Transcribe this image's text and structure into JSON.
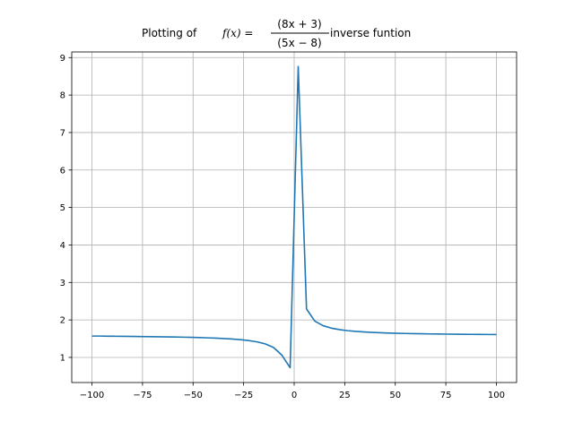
{
  "chart_data": {
    "type": "line",
    "title": {
      "prefix": "Plotting of ",
      "func": "f(x) = ",
      "numerator": "(8x + 3)",
      "denominator": "(5x − 8)",
      "suffix": " inverse funtion"
    },
    "xlim": [
      -110,
      110
    ],
    "ylim": [
      0.33,
      9.15
    ],
    "grid": true,
    "x_ticks": [
      -100,
      -75,
      -50,
      -25,
      0,
      25,
      50,
      75,
      100
    ],
    "x_tick_labels": [
      "−100",
      "−75",
      "−50",
      "−25",
      "0",
      "25",
      "50",
      "75",
      "100"
    ],
    "y_ticks": [
      1,
      2,
      3,
      4,
      5,
      6,
      7,
      8,
      9
    ],
    "y_tick_labels": [
      "1",
      "2",
      "3",
      "4",
      "5",
      "6",
      "7",
      "8",
      "9"
    ],
    "series": [
      {
        "color": "#1f77b4",
        "x": [
          -100,
          -95.9,
          -91.8,
          -87.8,
          -83.7,
          -79.6,
          -75.5,
          -71.4,
          -67.3,
          -63.3,
          -59.2,
          -55.1,
          -51.0,
          -46.9,
          -42.9,
          -38.8,
          -34.7,
          -30.6,
          -26.5,
          -22.4,
          -18.4,
          -14.3,
          -10.2,
          -6.1,
          -2.0,
          2.0,
          6.1,
          10.2,
          14.3,
          18.4,
          22.4,
          26.5,
          30.6,
          34.7,
          38.8,
          42.9,
          46.9,
          51.0,
          55.1,
          59.2,
          63.3,
          67.3,
          71.4,
          75.5,
          79.6,
          83.7,
          87.8,
          91.8,
          95.9,
          100
        ],
        "y": [
          1.57,
          1.57,
          1.566,
          1.564,
          1.562,
          1.56,
          1.557,
          1.554,
          1.551,
          1.548,
          1.544,
          1.54,
          1.535,
          1.529,
          1.522,
          1.514,
          1.503,
          1.49,
          1.473,
          1.449,
          1.415,
          1.36,
          1.265,
          1.062,
          0.725,
          8.76,
          2.293,
          1.97,
          1.846,
          1.781,
          1.741,
          1.713,
          1.693,
          1.679,
          1.667,
          1.658,
          1.65,
          1.644,
          1.639,
          1.634,
          1.63,
          1.627,
          1.624,
          1.621,
          1.619,
          1.617,
          1.615,
          1.613,
          1.612,
          1.61
        ]
      }
    ]
  }
}
